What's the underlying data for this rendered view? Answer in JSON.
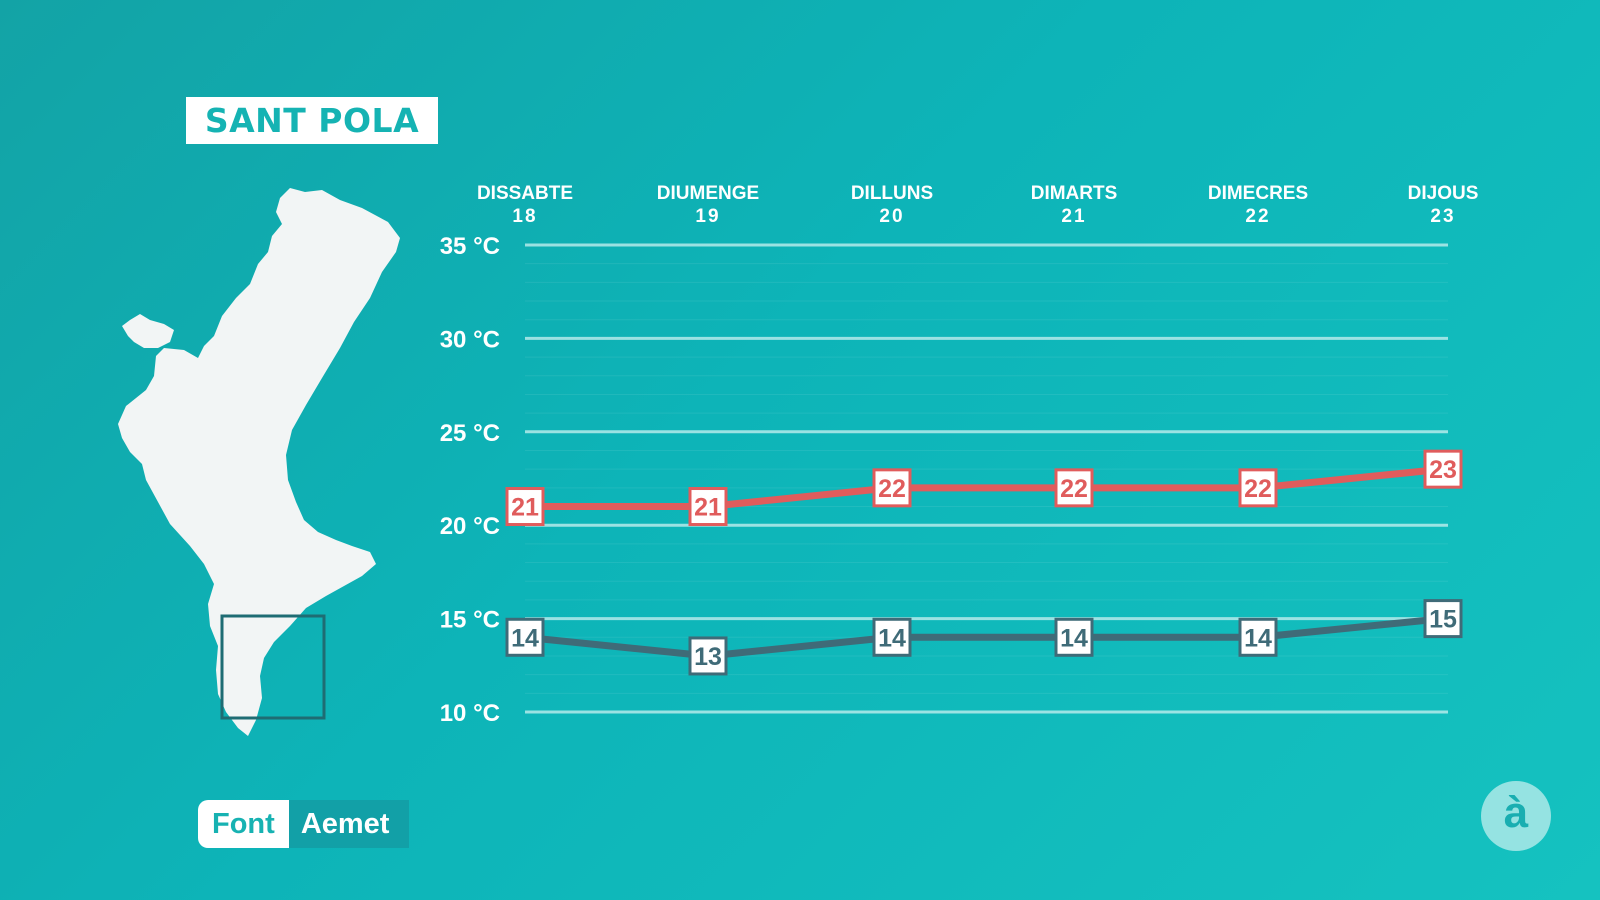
{
  "location": "SANT POLA",
  "source": {
    "label": "Font",
    "value": "Aemet"
  },
  "logo": "à",
  "colors": {
    "background": "#13a9ac",
    "max_line": "#e05c5c",
    "min_line": "#3f6b78",
    "grid": "#bfeeee",
    "text": "#ffffff"
  },
  "chart_data": {
    "type": "line",
    "categories": [
      {
        "day": "DISSABTE",
        "num": "18"
      },
      {
        "day": "DIUMENGE",
        "num": "19"
      },
      {
        "day": "DILLUNS",
        "num": "20"
      },
      {
        "day": "DIMARTS",
        "num": "21"
      },
      {
        "day": "DIMECRES",
        "num": "22"
      },
      {
        "day": "DIJOUS",
        "num": "23"
      }
    ],
    "series": [
      {
        "values": [
          21,
          21,
          22,
          22,
          22,
          23
        ],
        "color": "#e05c5c"
      },
      {
        "values": [
          14,
          13,
          14,
          14,
          14,
          15
        ],
        "color": "#3f6b78"
      }
    ],
    "yticks": [
      35,
      30,
      25,
      20,
      15,
      10
    ],
    "ytick_labels": [
      "35 °C",
      "30 °C",
      "25 °C",
      "20 °C",
      "15 °C",
      "10 °C"
    ],
    "ylim": [
      10,
      35
    ],
    "grid": true
  }
}
